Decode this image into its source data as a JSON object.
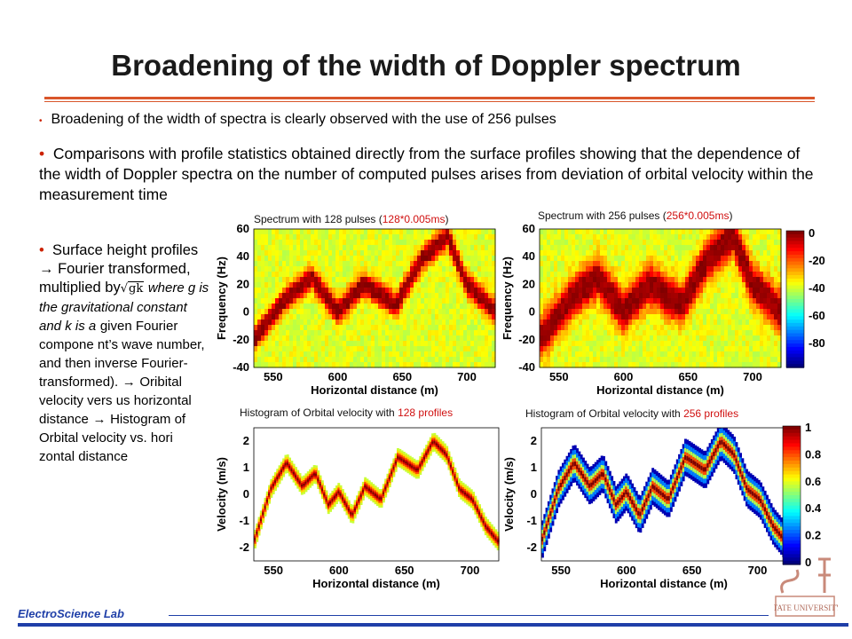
{
  "slide": {
    "title": "Broadening of the width of Doppler spectrum",
    "bullets": {
      "b1": "Broadening of the width of spectra is clearly observed with the use of 256 pulses",
      "b2": "Comparisons with profile statistics obtained directly from the surface profiles showing that the dependence of the width of Doppler spectra on the number of computed pulses arises from deviation of orbital velocity within the measurement time",
      "b3_part1": "Surface height profiles",
      "b3_arrow": "",
      "b3_part2": "Fourier transformed, multiplied by",
      "b3_sqrt": "gk",
      "b3_where": "where g is the gravitational constant and k is a",
      "b3_part3": "given Fourier compone nt’s wave number,",
      "b3_part4": "and then inverse Fourier-transformed).",
      "b3_part5": "Oribital velocity vers us horizontal distance",
      "b3_part6": "Histogram of Orbital velocity vs. hori zontal distance"
    },
    "footer": "ElectroScience Lab",
    "logo_text": "STATE UNIVERSITY"
  },
  "chart_data": [
    {
      "type": "heatmap",
      "title_prefix": "Spectrum with 128 pulses (",
      "title_red": "128*0.005ms",
      "title_suffix": ")",
      "xlabel": "Horizontal distance (m)",
      "ylabel": "Frequency (Hz)",
      "xticks": [
        "550",
        "600",
        "650",
        "700"
      ],
      "yticks": [
        "60",
        "40",
        "20",
        "0",
        "-20",
        "-40"
      ],
      "xlim": [
        535,
        722
      ],
      "ylim": [
        -40,
        60
      ],
      "ridge_x": [
        535,
        560,
        580,
        600,
        620,
        645,
        665,
        685,
        700,
        722
      ],
      "ridge_y": [
        -20,
        10,
        25,
        0,
        20,
        5,
        38,
        55,
        20,
        0
      ],
      "ridge_width_hz": 8
    },
    {
      "type": "heatmap",
      "title_prefix": "Spectrum with 256 pulses (",
      "title_red": "256*0.005ms",
      "title_suffix": ")",
      "xlabel": "Horizontal distance (m)",
      "ylabel": "Frequency (Hz)",
      "xticks": [
        "550",
        "600",
        "650",
        "700"
      ],
      "yticks": [
        "60",
        "40",
        "20",
        "0",
        "-20",
        "-40"
      ],
      "xlim": [
        535,
        722
      ],
      "ylim": [
        -40,
        60
      ],
      "ridge_x": [
        535,
        560,
        580,
        600,
        620,
        645,
        665,
        685,
        700,
        722
      ],
      "ridge_y": [
        -20,
        10,
        25,
        0,
        20,
        5,
        38,
        55,
        20,
        0
      ],
      "ridge_width_hz": 14,
      "colorbar_ticks": [
        "0",
        "-20",
        "-40",
        "-60",
        "-80"
      ]
    },
    {
      "type": "heatmap",
      "title_prefix": "Histogram of Orbital velocity with ",
      "title_red": "128 profiles",
      "title_suffix": "",
      "xlabel": "Horizontal distance (m)",
      "ylabel": "Velocity (m/s)",
      "xticks": [
        "550",
        "600",
        "650",
        "700"
      ],
      "yticks": [
        "2",
        "1",
        "0",
        "-1",
        "-2"
      ],
      "xlim": [
        535,
        722
      ],
      "ylim": [
        -2.5,
        2.5
      ],
      "curve_x": [
        535,
        548,
        560,
        572,
        582,
        592,
        600,
        610,
        620,
        632,
        645,
        660,
        672,
        682,
        692,
        702,
        712,
        722
      ],
      "curve_y": [
        -1.8,
        0.2,
        1.2,
        0.3,
        0.8,
        -0.4,
        0.1,
        -0.8,
        0.3,
        -0.2,
        1.4,
        0.9,
        2.0,
        1.5,
        0.2,
        -0.2,
        -1.2,
        -1.8
      ],
      "spread": 0.35
    },
    {
      "type": "heatmap",
      "title_prefix": "Histogram of Orbital velocity with ",
      "title_red": "256 profiles",
      "title_suffix": "",
      "xlabel": "Horizontal distance (m)",
      "ylabel": "Velocity (m/s)",
      "xticks": [
        "550",
        "600",
        "650",
        "700"
      ],
      "yticks": [
        "2",
        "1",
        "0",
        "-1",
        "-2"
      ],
      "xlim": [
        535,
        722
      ],
      "ylim": [
        -2.5,
        2.5
      ],
      "curve_x": [
        535,
        548,
        560,
        572,
        582,
        592,
        600,
        610,
        620,
        632,
        645,
        660,
        672,
        682,
        692,
        702,
        712,
        722
      ],
      "curve_y": [
        -1.8,
        0.2,
        1.2,
        0.3,
        0.8,
        -0.4,
        0.1,
        -0.8,
        0.3,
        -0.2,
        1.4,
        0.9,
        2.0,
        1.5,
        0.2,
        -0.2,
        -1.2,
        -1.8
      ],
      "spread": 0.7,
      "colorbar_ticks": [
        "1",
        "0.8",
        "0.6",
        "0.4",
        "0.2",
        "0"
      ]
    }
  ],
  "colors": {
    "accent_rule": "#d9562b",
    "bullet": "#cc2200",
    "footer": "#1f3fa8",
    "highlight_red": "#d01010"
  }
}
